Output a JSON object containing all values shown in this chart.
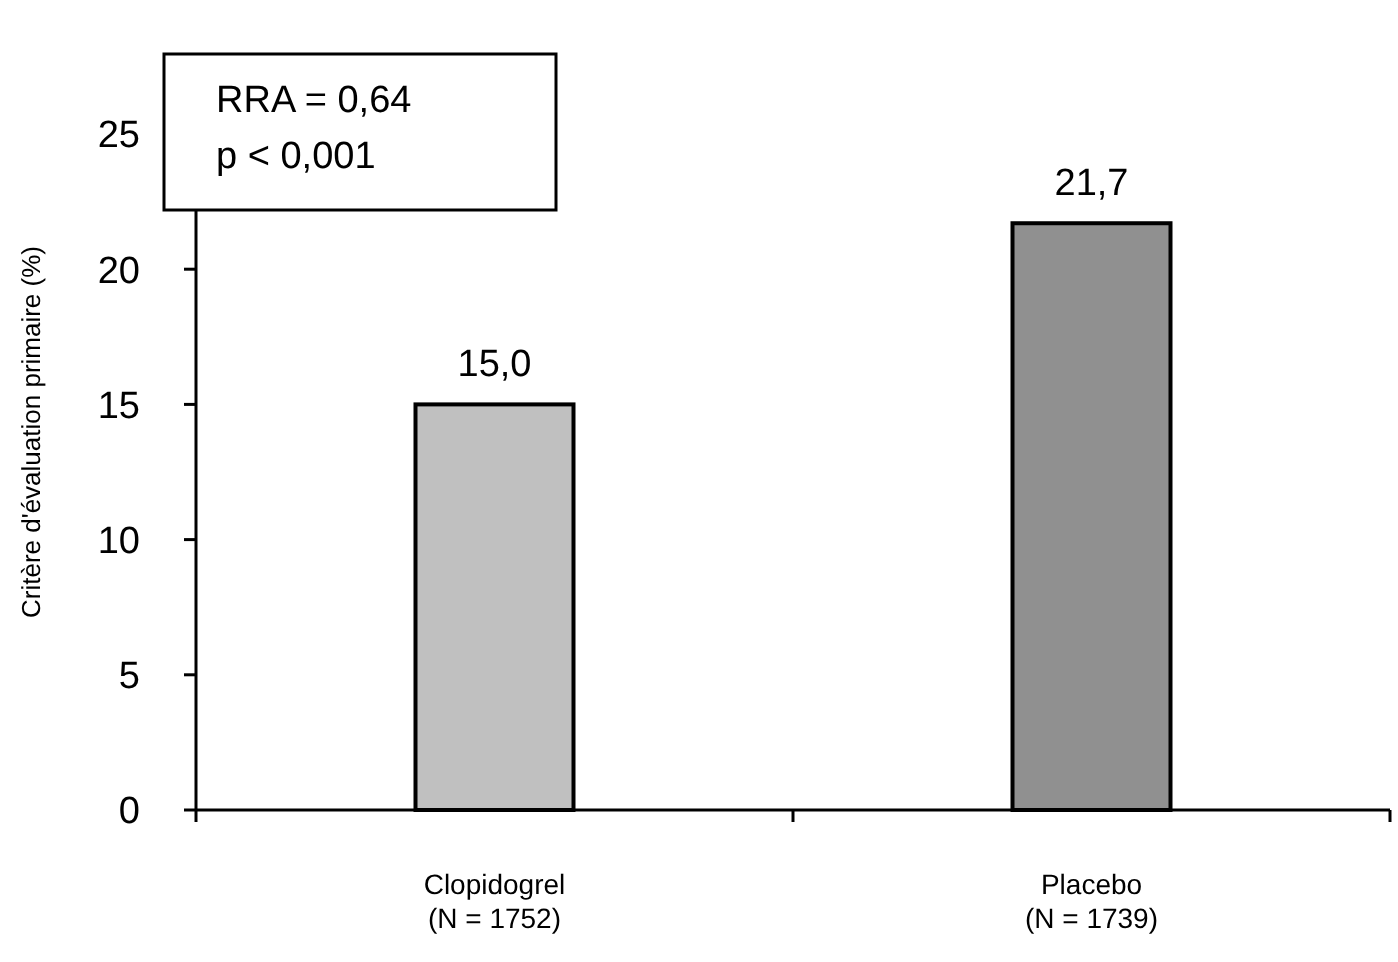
{
  "chart_data": {
    "type": "bar",
    "ylabel": "Critère d'évaluation primaire (%)",
    "categories": [
      "Clopidogrel\n(N = 1752)",
      "Placebo\n(N = 1739)"
    ],
    "values": [
      15.0,
      21.7
    ],
    "colors": [
      "#c0c0c0",
      "#909090"
    ],
    "value_labels": [
      "15,0",
      "21,7"
    ],
    "ylim": [
      0,
      25
    ],
    "yticks": [
      0,
      5,
      10,
      15,
      20,
      25
    ],
    "annotations": [
      "RRA = 0,64",
      "p < 0,001"
    ]
  }
}
